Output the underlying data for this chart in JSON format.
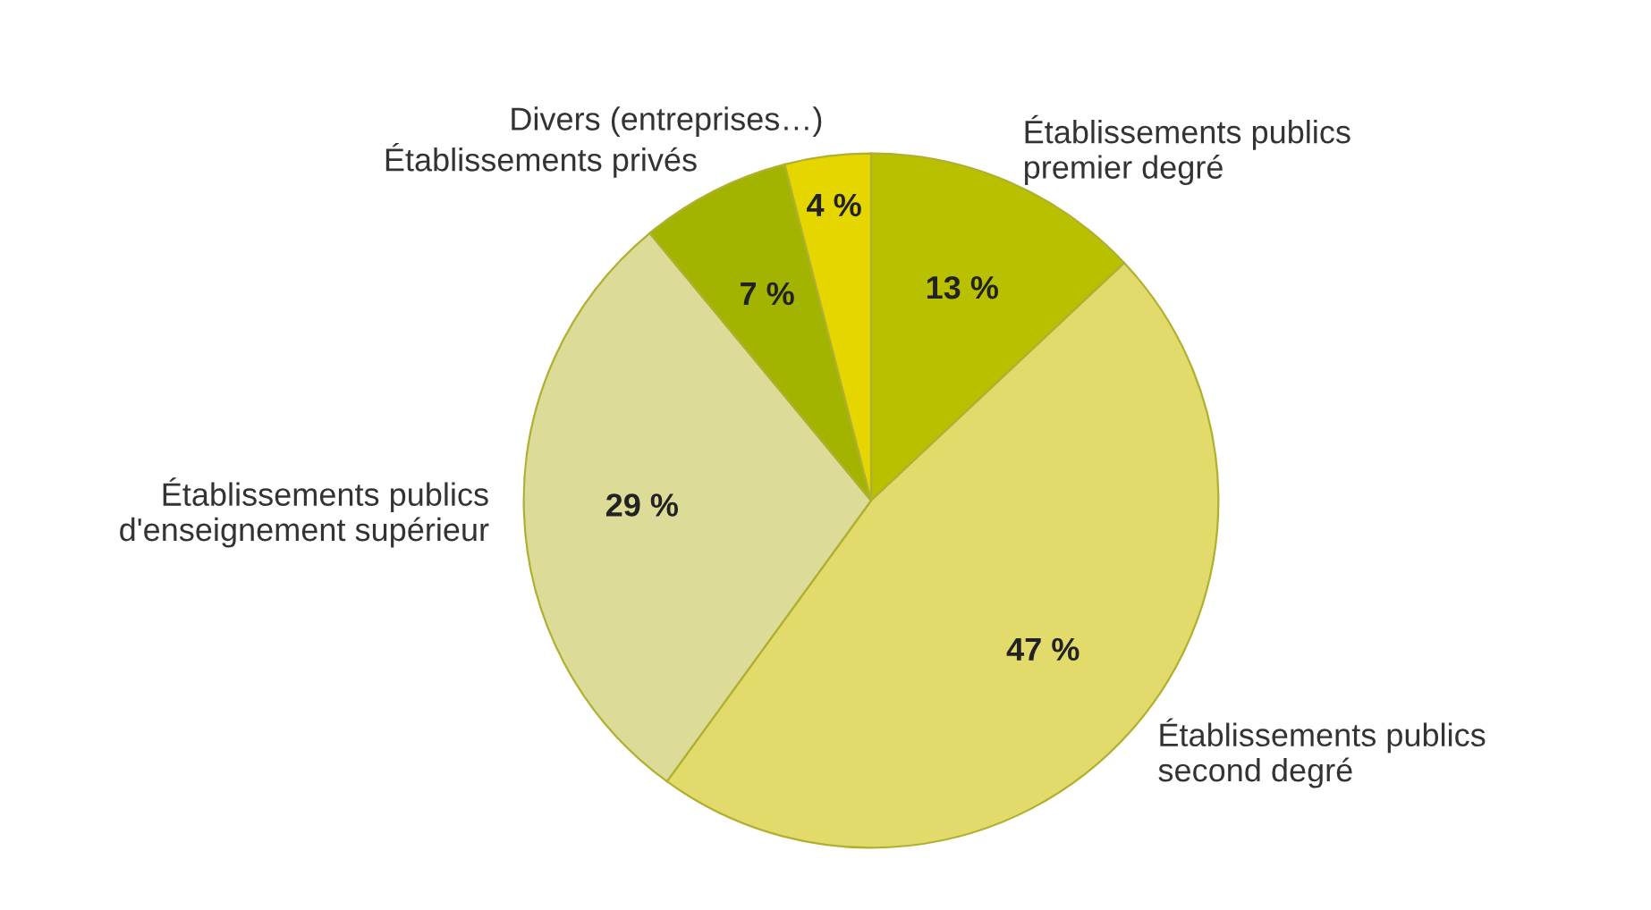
{
  "chart_data": {
    "type": "pie",
    "categories": [
      "Établissements publics\npremier degré",
      "Établissements publics\nsecond degré",
      "Établissements publics\nd'enseignement supérieur",
      "Établissements privés",
      "Divers (entreprises…)"
    ],
    "values": [
      13,
      47,
      29,
      7,
      4
    ],
    "value_labels": [
      "13 %",
      "47 %",
      "29 %",
      "7 %",
      "4 %"
    ],
    "colors": [
      "#b9c000",
      "#e2da6b",
      "#dcdb98",
      "#a3b400",
      "#e6d600"
    ],
    "legend": false
  }
}
